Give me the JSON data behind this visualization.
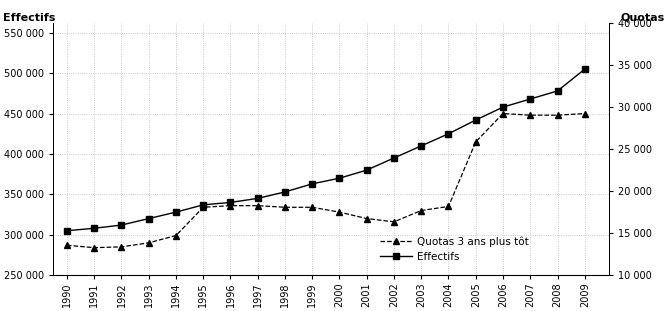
{
  "years": [
    1990,
    1991,
    1992,
    1993,
    1994,
    1995,
    1996,
    1997,
    1998,
    1999,
    2000,
    2001,
    2002,
    2003,
    2004,
    2005,
    2006,
    2007,
    2008,
    2009
  ],
  "effectifs": [
    305000,
    308000,
    312000,
    320000,
    328000,
    337000,
    340000,
    345000,
    353000,
    363000,
    370000,
    380000,
    395000,
    410000,
    425000,
    442000,
    458000,
    468000,
    478000,
    505000
  ],
  "quotas_visual": [
    287000,
    284000,
    285000,
    290000,
    299000,
    334000,
    336000,
    336000,
    334000,
    334000,
    328000,
    320000,
    316000,
    330000,
    335000,
    415000,
    450000,
    448000,
    448000,
    450000
  ],
  "left_ylabel": "Effectifs",
  "right_ylabel": "Quotas",
  "left_ylim": [
    250000,
    562000
  ],
  "right_ylim": [
    10000,
    40000
  ],
  "left_yticks": [
    250000,
    300000,
    350000,
    400000,
    450000,
    500000,
    550000
  ],
  "right_yticks": [
    10000,
    15000,
    20000,
    25000,
    30000,
    35000,
    40000
  ],
  "legend_quota": "Quotas 3 ans plus tôt",
  "legend_effectifs": "Effectifs",
  "bg_color": "#ffffff",
  "grid_color": "#bbbbbb"
}
